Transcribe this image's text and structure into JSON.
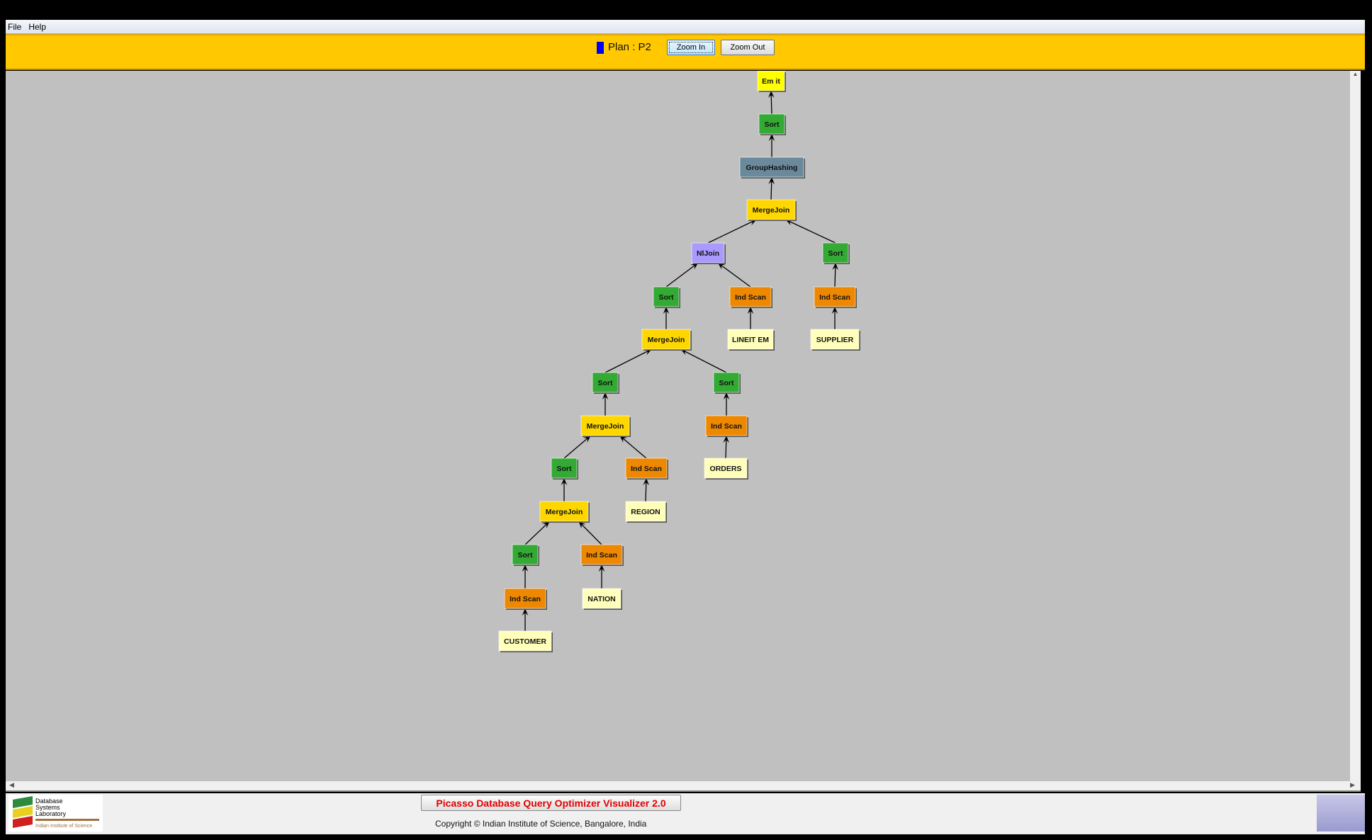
{
  "menu": {
    "items": [
      "File",
      "Help"
    ]
  },
  "toolbar": {
    "plan_label": "Plan : P2",
    "plan_color": "#0000ff",
    "zoom_in": "Zoom In",
    "zoom_out": "Zoom Out"
  },
  "footer": {
    "title": "Picasso Database Query Optimizer Visualizer 2.0",
    "copyright": "Copyright © Indian Institute of Science, Bangalore, India",
    "logo_text": [
      "Database",
      "Systems",
      "Laboratory",
      "Indian Institute of Science"
    ]
  },
  "node_colors": {
    "Emit": "#ffff00",
    "Sort": "#33aa33",
    "GroupHashing": "#6a8a9c",
    "MergeJoin": "#ffd700",
    "NlJoin": "#aa99ff",
    "IndScan": "#ee8800",
    "Table": "#ffffbb"
  },
  "plan_tree": [
    {
      "id": "n1",
      "label": "Em it",
      "type": "Emit",
      "parent": null
    },
    {
      "id": "n2",
      "label": "Sort",
      "type": "Sort",
      "parent": "n1"
    },
    {
      "id": "n3",
      "label": "GroupHashing",
      "type": "GroupHashing",
      "parent": "n2"
    },
    {
      "id": "n4",
      "label": "MergeJoin",
      "type": "MergeJoin",
      "parent": "n3"
    },
    {
      "id": "n5",
      "label": "NlJoin",
      "type": "NlJoin",
      "parent": "n4"
    },
    {
      "id": "n6",
      "label": "Sort",
      "type": "Sort",
      "parent": "n4"
    },
    {
      "id": "n7",
      "label": "Sort",
      "type": "Sort",
      "parent": "n5"
    },
    {
      "id": "n8",
      "label": "Ind Scan",
      "type": "IndScan",
      "parent": "n5"
    },
    {
      "id": "n9",
      "label": "Ind Scan",
      "type": "IndScan",
      "parent": "n6"
    },
    {
      "id": "n10",
      "label": "LINEIT EM",
      "type": "Table",
      "parent": "n8"
    },
    {
      "id": "n11",
      "label": "SUPPLIER",
      "type": "Table",
      "parent": "n9"
    },
    {
      "id": "n12",
      "label": "MergeJoin",
      "type": "MergeJoin",
      "parent": "n7"
    },
    {
      "id": "n13",
      "label": "Sort",
      "type": "Sort",
      "parent": "n12"
    },
    {
      "id": "n14",
      "label": "Sort",
      "type": "Sort",
      "parent": "n12"
    },
    {
      "id": "n15",
      "label": "MergeJoin",
      "type": "MergeJoin",
      "parent": "n13"
    },
    {
      "id": "n16",
      "label": "Ind Scan",
      "type": "IndScan",
      "parent": "n14"
    },
    {
      "id": "n17",
      "label": "ORDERS",
      "type": "Table",
      "parent": "n16"
    },
    {
      "id": "n18",
      "label": "Sort",
      "type": "Sort",
      "parent": "n15"
    },
    {
      "id": "n19",
      "label": "Ind Scan",
      "type": "IndScan",
      "parent": "n15"
    },
    {
      "id": "n20",
      "label": "MergeJoin",
      "type": "MergeJoin",
      "parent": "n18"
    },
    {
      "id": "n21",
      "label": "REGION",
      "type": "Table",
      "parent": "n19"
    },
    {
      "id": "n22",
      "label": "Sort",
      "type": "Sort",
      "parent": "n20"
    },
    {
      "id": "n23",
      "label": "Ind Scan",
      "type": "IndScan",
      "parent": "n20"
    },
    {
      "id": "n24",
      "label": "Ind Scan",
      "type": "IndScan",
      "parent": "n22"
    },
    {
      "id": "n25",
      "label": "NATION",
      "type": "Table",
      "parent": "n23"
    },
    {
      "id": "n26",
      "label": "CUSTOMER",
      "type": "Table",
      "parent": "n24"
    }
  ]
}
